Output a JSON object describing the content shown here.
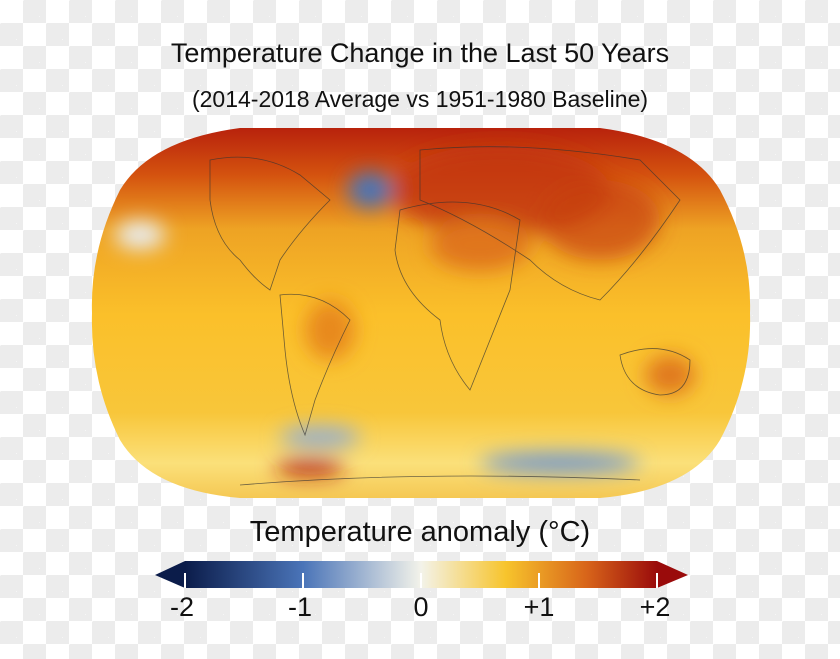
{
  "title": "Temperature Change in the Last 50 Years",
  "subtitle": "(2014-2018 Average vs 1951-1980 Baseline)",
  "colorbar": {
    "title": "Temperature anomaly (°C)",
    "ticks": [
      "-2",
      "-1",
      "0",
      "+1",
      "+2"
    ],
    "range": [
      -2,
      2
    ],
    "colors": [
      "#0b1c4a",
      "#4a74b8",
      "#f3f3ea",
      "#f7c42c",
      "#e07a1a",
      "#9a0b0b"
    ]
  }
}
